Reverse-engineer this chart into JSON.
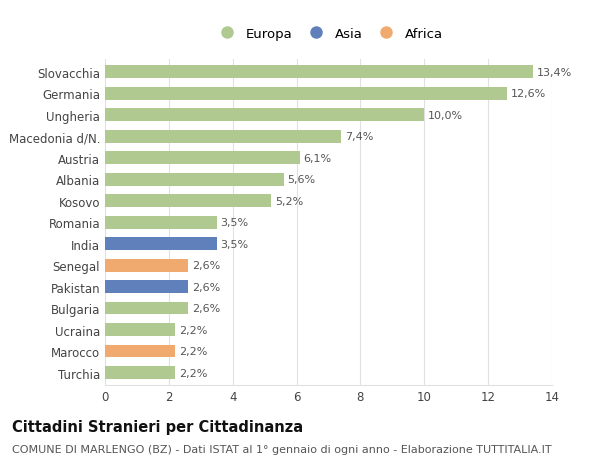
{
  "categories": [
    "Slovacchia",
    "Germania",
    "Ungheria",
    "Macedonia d/N.",
    "Austria",
    "Albania",
    "Kosovo",
    "Romania",
    "India",
    "Senegal",
    "Pakistan",
    "Bulgaria",
    "Ucraina",
    "Marocco",
    "Turchia"
  ],
  "values": [
    13.4,
    12.6,
    10.0,
    7.4,
    6.1,
    5.6,
    5.2,
    3.5,
    3.5,
    2.6,
    2.6,
    2.6,
    2.2,
    2.2,
    2.2
  ],
  "labels": [
    "13,4%",
    "12,6%",
    "10,0%",
    "7,4%",
    "6,1%",
    "5,6%",
    "5,2%",
    "3,5%",
    "3,5%",
    "2,6%",
    "2,6%",
    "2,6%",
    "2,2%",
    "2,2%",
    "2,2%"
  ],
  "continents": [
    "Europa",
    "Europa",
    "Europa",
    "Europa",
    "Europa",
    "Europa",
    "Europa",
    "Europa",
    "Asia",
    "Africa",
    "Asia",
    "Europa",
    "Europa",
    "Africa",
    "Europa"
  ],
  "colors": {
    "Europa": "#b0c990",
    "Asia": "#6080bb",
    "Africa": "#f0aa70"
  },
  "title": "Cittadini Stranieri per Cittadinanza",
  "subtitle": "COMUNE DI MARLENGO (BZ) - Dati ISTAT al 1° gennaio di ogni anno - Elaborazione TUTTITALIA.IT",
  "xlim": [
    0,
    14
  ],
  "xticks": [
    0,
    2,
    4,
    6,
    8,
    10,
    12,
    14
  ],
  "background_color": "#ffffff",
  "grid_color": "#e0e0e0",
  "bar_height": 0.6,
  "title_fontsize": 10.5,
  "subtitle_fontsize": 8,
  "label_fontsize": 8,
  "tick_fontsize": 8.5,
  "legend_fontsize": 9.5
}
